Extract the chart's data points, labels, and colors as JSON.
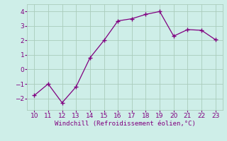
{
  "x": [
    10,
    11,
    12,
    13,
    14,
    15,
    16,
    17,
    18,
    19,
    20,
    21,
    22,
    23
  ],
  "y": [
    -1.8,
    -1.0,
    -2.3,
    -1.2,
    0.8,
    2.0,
    3.35,
    3.5,
    3.8,
    4.0,
    2.3,
    2.75,
    2.7,
    2.05
  ],
  "line_color": "#800080",
  "marker": "+",
  "marker_size": 4,
  "background_color": "#ceeee8",
  "grid_color": "#aaccbb",
  "xlabel": "Windchill (Refroidissement éolien,°C)",
  "xlabel_color": "#800080",
  "tick_color": "#800080",
  "xlim": [
    9.5,
    23.5
  ],
  "ylim": [
    -2.8,
    4.5
  ],
  "yticks": [
    -2,
    -1,
    0,
    1,
    2,
    3,
    4
  ],
  "xticks": [
    10,
    11,
    12,
    13,
    14,
    15,
    16,
    17,
    18,
    19,
    20,
    21,
    22,
    23
  ],
  "tick_fontsize": 6.5,
  "xlabel_fontsize": 6.5
}
